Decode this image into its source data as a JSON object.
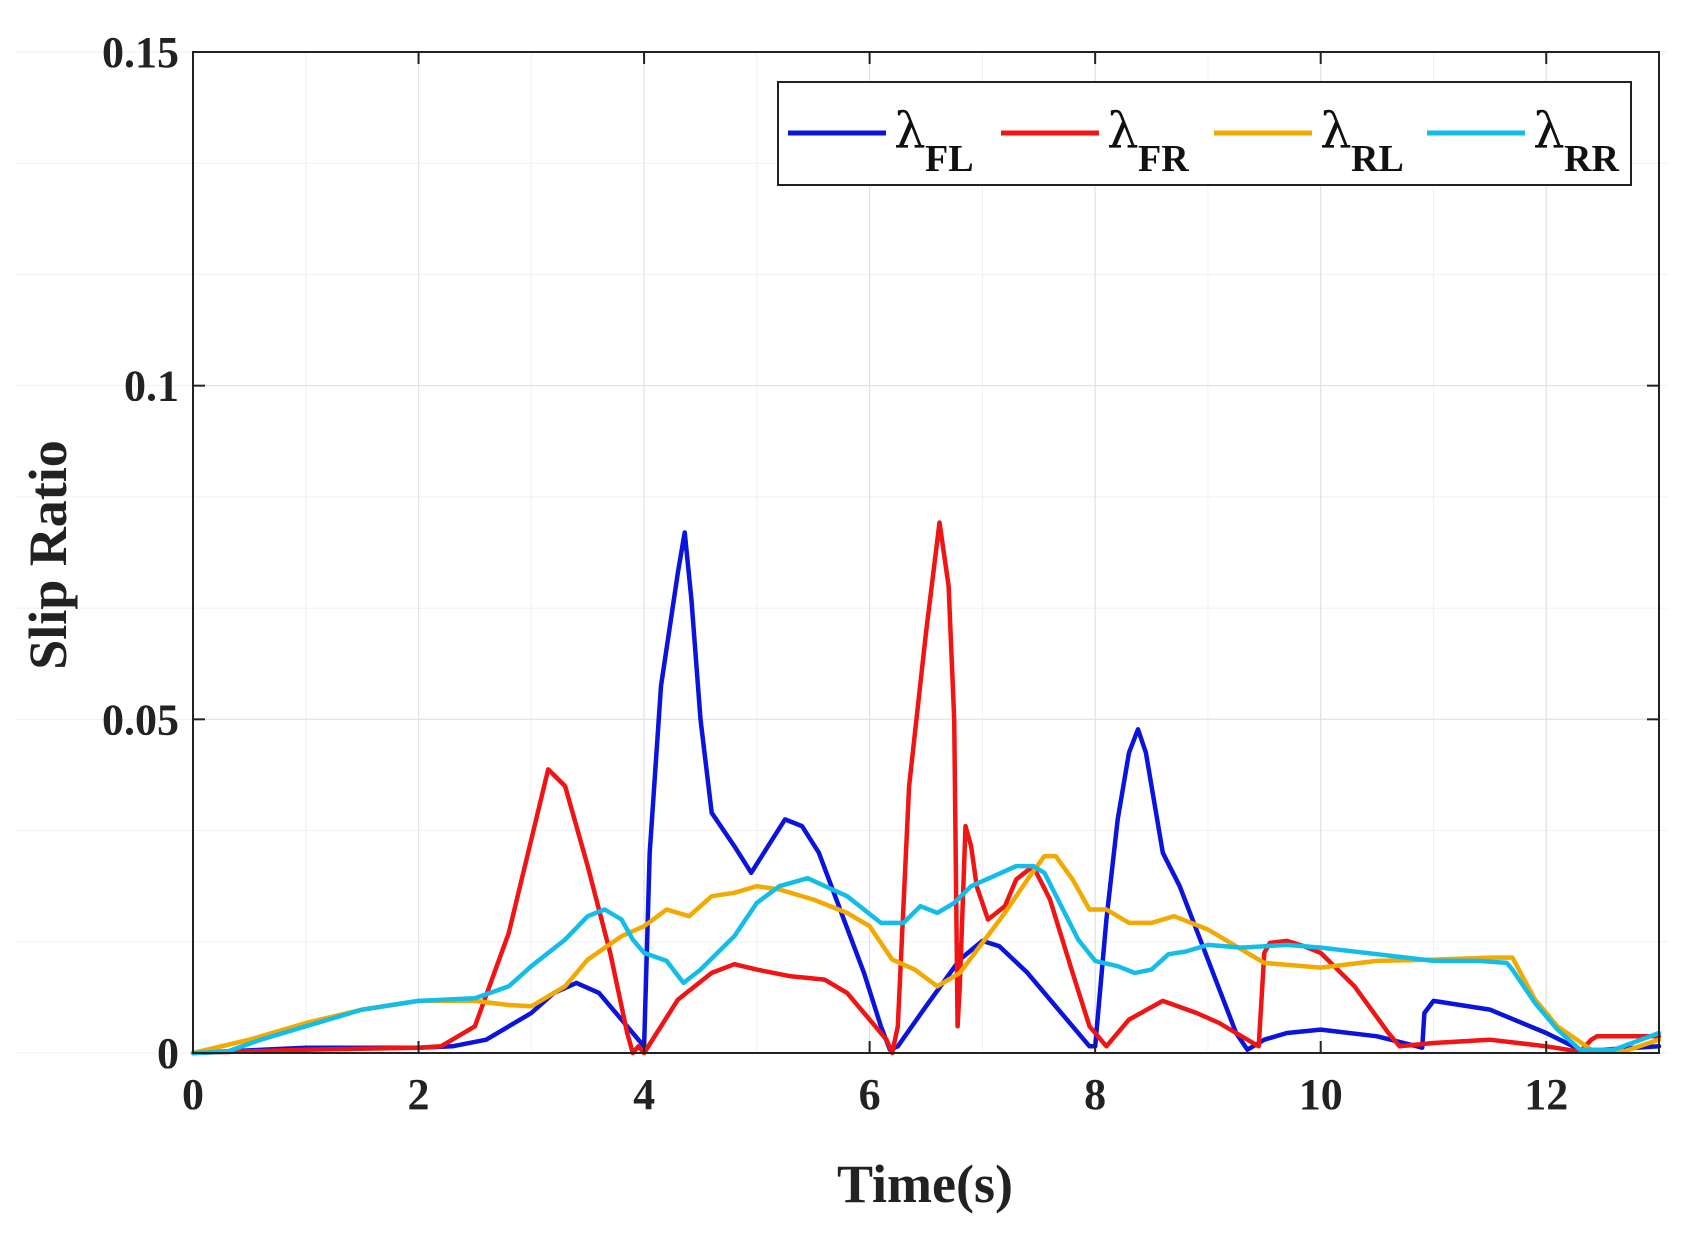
{
  "chart_data": {
    "type": "line",
    "title": "",
    "xlabel": "Time(s)",
    "ylabel": "Slip Ratio",
    "xlim": [
      0,
      13
    ],
    "ylim": [
      0,
      0.15
    ],
    "grid": true,
    "legend_position": "top-right",
    "xticks": [
      0,
      2,
      4,
      6,
      8,
      10,
      12
    ],
    "xtick_labels": [
      "0",
      "2",
      "4",
      "6",
      "8",
      "10",
      "12"
    ],
    "yticks": [
      0,
      0.05,
      0.1,
      0.15
    ],
    "ytick_labels": [
      "0",
      "0.05",
      "0.1",
      "0.15"
    ],
    "series": [
      {
        "name": "FL",
        "symbol": "λ",
        "subscript": "FL",
        "color": "#0a14dc",
        "x": [
          0,
          1,
          2,
          2.3,
          2.6,
          3.0,
          3.2,
          3.4,
          3.6,
          3.8,
          3.95,
          4.0,
          4.05,
          4.15,
          4.3,
          4.36,
          4.42,
          4.5,
          4.6,
          4.8,
          4.95,
          5.1,
          5.25,
          5.4,
          5.55,
          5.75,
          5.95,
          6.1,
          6.18,
          6.25,
          6.5,
          6.8,
          7.0,
          7.15,
          7.4,
          7.7,
          7.95,
          8.0,
          8.1,
          8.2,
          8.3,
          8.38,
          8.45,
          8.6,
          8.75,
          9.0,
          9.25,
          9.35,
          9.5,
          9.7,
          10.0,
          10.5,
          10.9,
          10.92,
          11.0,
          11.5,
          12.0,
          12.3,
          12.5,
          13.0
        ],
        "y": [
          0,
          0.0008,
          0.0008,
          0.001,
          0.002,
          0.006,
          0.009,
          0.0105,
          0.009,
          0.005,
          0.002,
          0.001,
          0.03,
          0.055,
          0.072,
          0.078,
          0.068,
          0.05,
          0.036,
          0.031,
          0.027,
          0.031,
          0.035,
          0.034,
          0.03,
          0.021,
          0.012,
          0.004,
          0.0005,
          0.001,
          0.007,
          0.014,
          0.0168,
          0.016,
          0.012,
          0.006,
          0.001,
          0.001,
          0.02,
          0.035,
          0.045,
          0.0485,
          0.045,
          0.03,
          0.025,
          0.014,
          0.003,
          0.0005,
          0.002,
          0.003,
          0.0035,
          0.0025,
          0.0008,
          0.006,
          0.0078,
          0.0065,
          0.003,
          0.0005,
          0.0005,
          0.001
        ]
      },
      {
        "name": "FR",
        "symbol": "λ",
        "subscript": "FR",
        "color": "#f01414",
        "x": [
          0,
          1,
          2,
          2.2,
          2.5,
          2.8,
          3.0,
          3.15,
          3.3,
          3.5,
          3.7,
          3.85,
          3.9,
          3.95,
          4.0,
          4.3,
          4.6,
          4.8,
          5.0,
          5.3,
          5.6,
          5.8,
          6.0,
          6.15,
          6.2,
          6.25,
          6.35,
          6.5,
          6.62,
          6.7,
          6.75,
          6.78,
          6.8,
          6.85,
          6.9,
          6.95,
          7.05,
          7.2,
          7.3,
          7.45,
          7.6,
          7.8,
          7.95,
          8.1,
          8.3,
          8.6,
          8.9,
          9.1,
          9.35,
          9.45,
          9.5,
          9.55,
          9.7,
          9.85,
          10.0,
          10.3,
          10.6,
          10.7,
          11.0,
          11.5,
          12.0,
          12.3,
          12.4,
          12.45,
          13.0
        ],
        "y": [
          0,
          0.0005,
          0.0008,
          0.001,
          0.004,
          0.018,
          0.032,
          0.0425,
          0.04,
          0.028,
          0.015,
          0.003,
          0,
          0.001,
          0,
          0.008,
          0.012,
          0.0133,
          0.0125,
          0.0115,
          0.011,
          0.009,
          0.005,
          0.002,
          0,
          0.004,
          0.04,
          0.063,
          0.0795,
          0.07,
          0.05,
          0.004,
          0.01,
          0.034,
          0.031,
          0.025,
          0.02,
          0.022,
          0.026,
          0.028,
          0.023,
          0.012,
          0.004,
          0.001,
          0.005,
          0.0078,
          0.006,
          0.0045,
          0.002,
          0.001,
          0.015,
          0.0165,
          0.0168,
          0.016,
          0.015,
          0.01,
          0.003,
          0.001,
          0.0015,
          0.002,
          0.001,
          0.0002,
          0.002,
          0.0025,
          0.0025
        ]
      },
      {
        "name": "RL",
        "symbol": "λ",
        "subscript": "RL",
        "color": "#f2a900",
        "x": [
          0,
          0.5,
          1.0,
          1.5,
          2.0,
          2.5,
          2.8,
          3.0,
          3.3,
          3.5,
          3.8,
          4.0,
          4.2,
          4.4,
          4.6,
          4.8,
          5.0,
          5.2,
          5.5,
          5.8,
          6.0,
          6.2,
          6.4,
          6.6,
          6.8,
          7.0,
          7.2,
          7.4,
          7.55,
          7.65,
          7.8,
          7.95,
          8.1,
          8.3,
          8.5,
          8.7,
          9.0,
          9.2,
          9.5,
          10.0,
          10.5,
          11.0,
          11.5,
          11.7,
          11.9,
          12.1,
          12.4,
          12.7,
          13.0
        ],
        "y": [
          0,
          0.002,
          0.0045,
          0.0065,
          0.0078,
          0.0078,
          0.0072,
          0.007,
          0.01,
          0.014,
          0.0175,
          0.019,
          0.0215,
          0.0205,
          0.0235,
          0.024,
          0.025,
          0.0245,
          0.023,
          0.021,
          0.019,
          0.014,
          0.0125,
          0.01,
          0.012,
          0.0165,
          0.021,
          0.026,
          0.0295,
          0.0295,
          0.026,
          0.0215,
          0.0215,
          0.0195,
          0.0195,
          0.0205,
          0.0185,
          0.0165,
          0.0135,
          0.0128,
          0.0138,
          0.014,
          0.0143,
          0.0143,
          0.008,
          0.004,
          0.0005,
          0.0003,
          0.002
        ]
      },
      {
        "name": "RR",
        "symbol": "λ",
        "subscript": "RR",
        "color": "#14bde8",
        "x": [
          0,
          0.3,
          0.6,
          1.0,
          1.5,
          2.0,
          2.5,
          2.8,
          3.0,
          3.3,
          3.5,
          3.65,
          3.8,
          3.9,
          4.0,
          4.2,
          4.35,
          4.5,
          4.8,
          5.0,
          5.2,
          5.45,
          5.8,
          6.1,
          6.3,
          6.45,
          6.6,
          6.75,
          6.9,
          7.1,
          7.3,
          7.45,
          7.55,
          7.7,
          7.85,
          8.0,
          8.2,
          8.35,
          8.5,
          8.65,
          8.8,
          9.0,
          9.3,
          9.7,
          10.0,
          10.5,
          11.0,
          11.4,
          11.65,
          11.7,
          11.9,
          12.1,
          12.3,
          12.6,
          13.0
        ],
        "y": [
          0,
          0.0002,
          0.002,
          0.004,
          0.0065,
          0.0078,
          0.0082,
          0.01,
          0.013,
          0.017,
          0.0205,
          0.0215,
          0.02,
          0.017,
          0.015,
          0.0138,
          0.0105,
          0.0125,
          0.0175,
          0.0225,
          0.025,
          0.0262,
          0.0235,
          0.0195,
          0.0195,
          0.022,
          0.021,
          0.0225,
          0.025,
          0.0265,
          0.028,
          0.028,
          0.027,
          0.022,
          0.017,
          0.0138,
          0.013,
          0.012,
          0.0125,
          0.0148,
          0.0152,
          0.0162,
          0.0158,
          0.0162,
          0.0158,
          0.0148,
          0.0138,
          0.0138,
          0.0135,
          0.0125,
          0.0075,
          0.0035,
          0.0005,
          0.0005,
          0.003
        ]
      }
    ]
  }
}
